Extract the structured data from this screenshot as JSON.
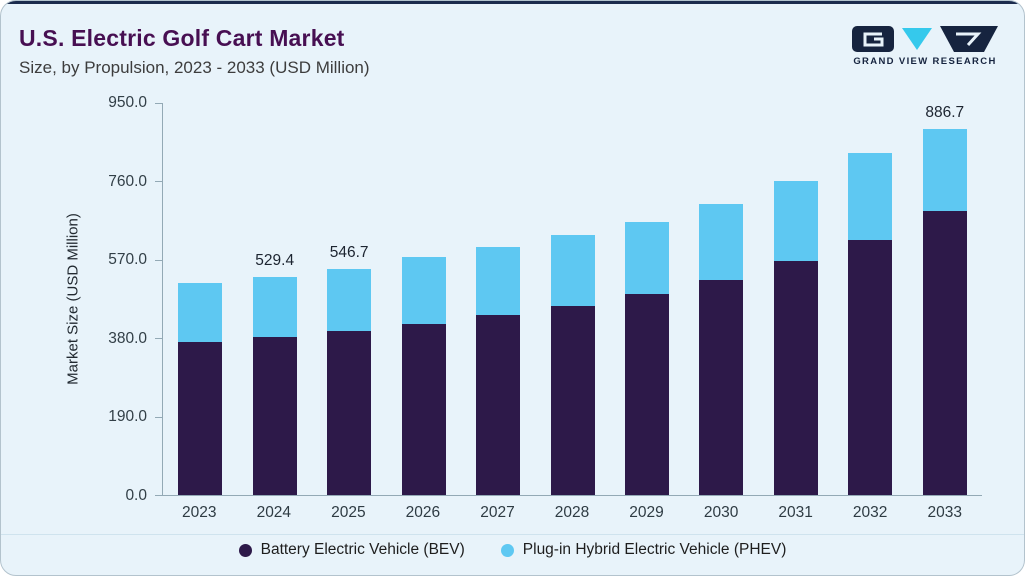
{
  "header": {
    "title": "U.S. Electric Golf Cart Market",
    "subtitle": "Size, by Propulsion, 2023 - 2033 (USD Million)",
    "logo_text": "GRAND VIEW RESEARCH"
  },
  "colors": {
    "card_background": "#e8f3fa",
    "accent_navy": "#1b2b4d",
    "title_purple": "#470f52",
    "bev_bar": "#2d1949",
    "phev_bar": "#5ec8f2"
  },
  "chart_data": {
    "type": "bar",
    "stacked": true,
    "title": "U.S. Electric Golf Cart Market Size, by Propulsion, 2023 - 2033 (USD Million)",
    "xlabel": "",
    "ylabel": "Market Size (USD Million)",
    "ylim": [
      0,
      950
    ],
    "ytick_labels": [
      "950.0",
      "760.0",
      "570.0",
      "380.0",
      "190.0",
      "0.0"
    ],
    "grid": false,
    "legend_position": "bottom",
    "categories": [
      "2023",
      "2024",
      "2025",
      "2026",
      "2027",
      "2028",
      "2029",
      "2030",
      "2031",
      "2032",
      "2033"
    ],
    "series": [
      {
        "name": "Battery Electric Vehicle (BEV)",
        "color": "#2d1949",
        "values": [
          372,
          382,
          397,
          415,
          436,
          459,
          487,
          521,
          566,
          618,
          688
        ]
      },
      {
        "name": "Plug-in Hybrid Electric Vehicle (PHEV)",
        "color": "#5ec8f2",
        "values": [
          141,
          147.4,
          149.7,
          161,
          166,
          171,
          174,
          184,
          196,
          210,
          198.7
        ]
      }
    ],
    "totals": [
      513,
      529.4,
      546.7,
      576,
      602,
      630,
      661,
      705,
      762,
      828,
      886.7
    ],
    "bar_labels": [
      "",
      "529.4",
      "546.7",
      "",
      "",
      "",
      "",
      "",
      "",
      "",
      "886.7"
    ]
  }
}
